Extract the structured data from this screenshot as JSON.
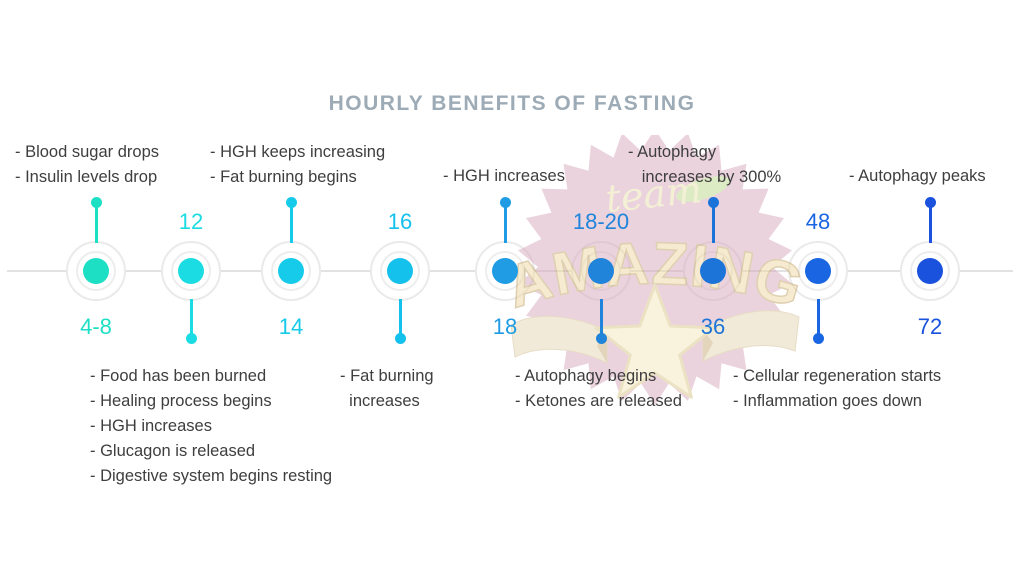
{
  "title": "HOURLY BENEFITS OF FASTING",
  "watermark": {
    "script_word": "team",
    "main_word": "AMAZING"
  },
  "timeline": {
    "axis_color": "#E2E2E2",
    "nodes": [
      {
        "hours": "4-8",
        "color": "#1CDFC4",
        "notes": [
          "- Blood sugar drops",
          "- Insulin levels drop"
        ]
      },
      {
        "hours": "12",
        "color": "#1BDCE2",
        "notes": [
          "- Food has been burned",
          "- Healing process begins",
          "- HGH increases",
          "- Glucagon is released",
          "- Digestive system begins resting"
        ]
      },
      {
        "hours": "14",
        "color": "#16CBEA",
        "notes": [
          "- HGH keeps increasing",
          "- Fat burning begins"
        ]
      },
      {
        "hours": "16",
        "color": "#14C0EC",
        "notes": [
          "- Fat burning",
          "  increases"
        ]
      },
      {
        "hours": "18",
        "color": "#1F9CE4",
        "notes": [
          "- HGH increases"
        ]
      },
      {
        "hours": "18-20",
        "color": "#1F84DA",
        "notes": [
          "- Autophagy begins",
          "- Ketones are released"
        ]
      },
      {
        "hours": "36",
        "color": "#1C74D8",
        "notes": [
          "- Autophagy",
          "   increases by 300%"
        ]
      },
      {
        "hours": "48",
        "color": "#1A66E2",
        "notes": [
          "- Cellular regeneration starts",
          "- Inflammation goes down"
        ]
      },
      {
        "hours": "72",
        "color": "#1A52DE",
        "notes": [
          "- Autophagy peaks"
        ]
      }
    ]
  }
}
